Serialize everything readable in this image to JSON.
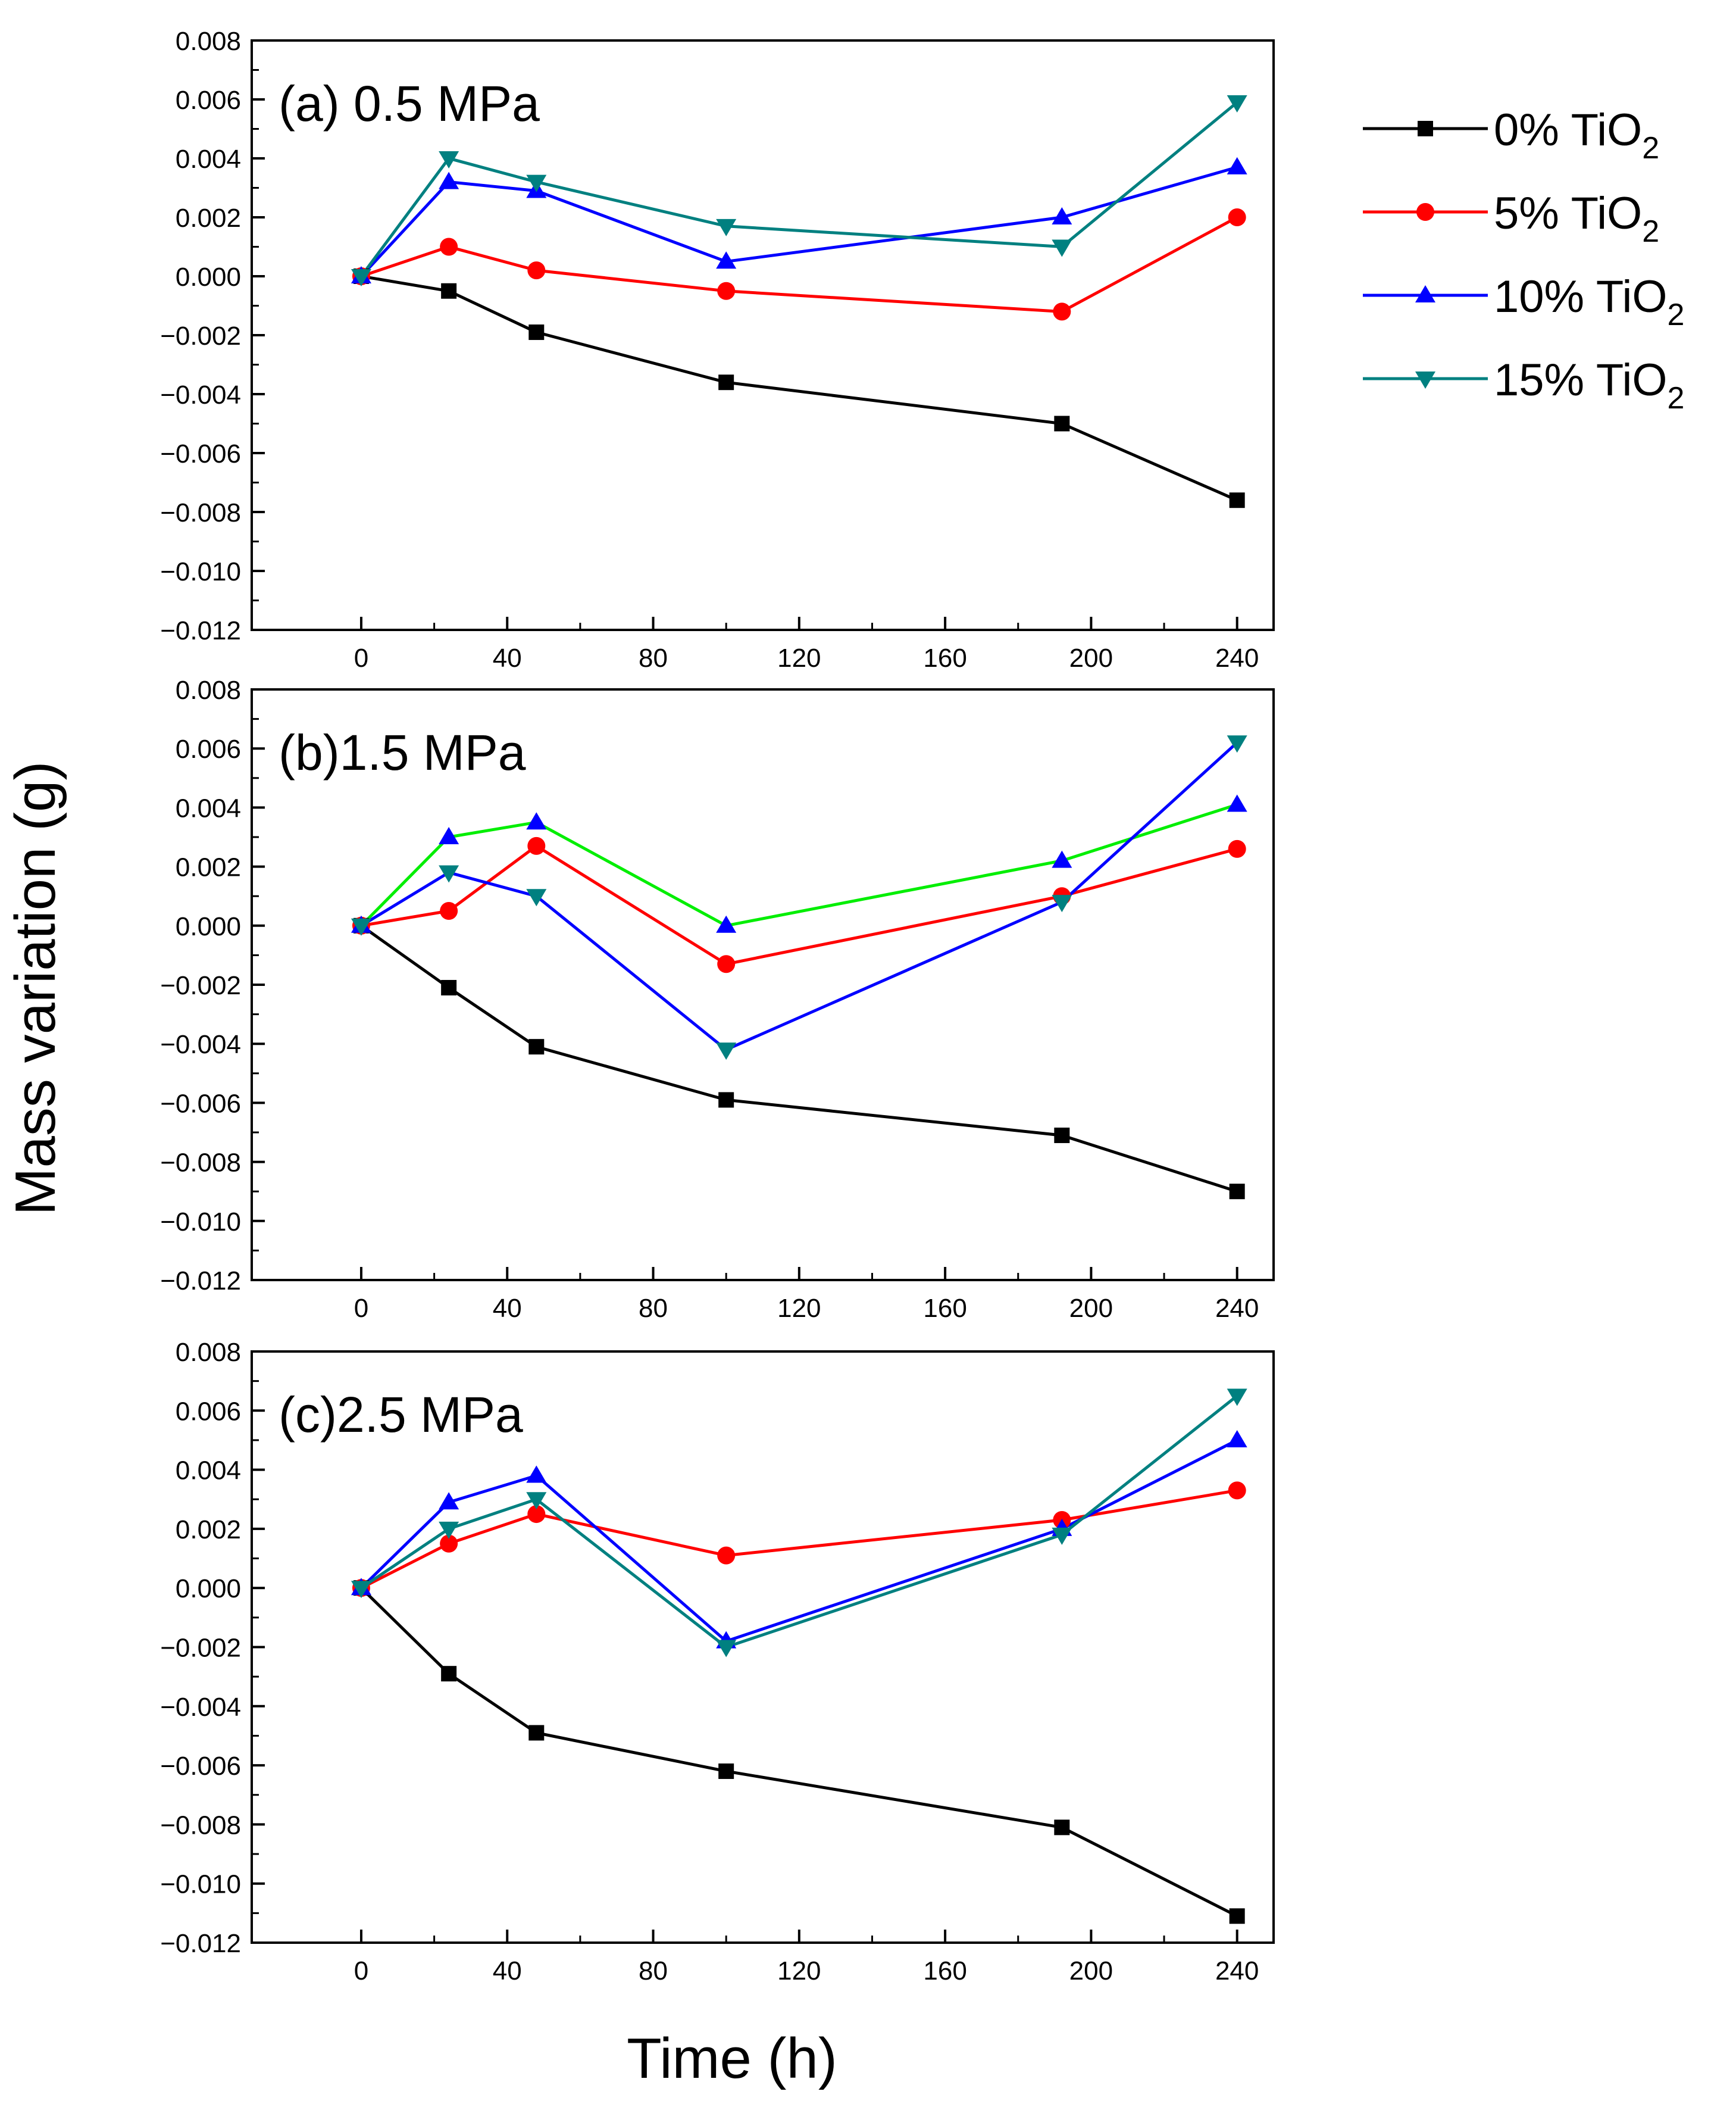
{
  "figure": {
    "ylabel": "Mass variation (g)",
    "xlabel": "Time (h)"
  },
  "legend": {
    "placement": "top-right",
    "entries": [
      {
        "prefix": "0% TiO",
        "sub": "2",
        "color": "#000000",
        "marker": "square"
      },
      {
        "prefix": "5% TiO",
        "sub": "2",
        "color": "#ff0000",
        "marker": "circle"
      },
      {
        "prefix": "10% TiO",
        "sub": "2",
        "color": "#0000ff",
        "marker": "triangle-up"
      },
      {
        "prefix": "15% TiO",
        "sub": "2",
        "color": "#008080",
        "marker": "triangle-down"
      }
    ]
  },
  "chart_data": [
    {
      "type": "line",
      "title": "(a) 0.5 MPa",
      "xlim": [
        -30,
        250
      ],
      "ylim": [
        -0.012,
        0.008
      ],
      "xticks": [
        0,
        40,
        80,
        120,
        160,
        200,
        240
      ],
      "yticks": [
        -0.012,
        -0.01,
        -0.008,
        -0.006,
        -0.004,
        -0.002,
        0.0,
        0.002,
        0.004,
        0.006,
        0.008
      ],
      "ytick_labels": [
        "−0.012",
        "−0.010",
        "−0.008",
        "−0.006",
        "−0.004",
        "−0.002",
        "0.000",
        "0.002",
        "0.004",
        "0.006",
        "0.008"
      ],
      "x": [
        0,
        24,
        48,
        100,
        192,
        240
      ],
      "series": [
        {
          "name": "0% TiO2",
          "color": "#000000",
          "line_color": "#000000",
          "marker": "square",
          "values": [
            0.0,
            -0.0005,
            -0.0019,
            -0.0036,
            -0.005,
            -0.0076
          ]
        },
        {
          "name": "5% TiO2",
          "color": "#ff0000",
          "line_color": "#ff0000",
          "marker": "circle",
          "values": [
            0.0,
            0.001,
            0.0002,
            -0.0005,
            -0.0012,
            0.002
          ]
        },
        {
          "name": "10% TiO2",
          "color": "#0000ff",
          "line_color": "#0000ff",
          "marker": "triangle-up",
          "values": [
            0.0,
            0.0032,
            0.0029,
            0.0005,
            0.002,
            0.0037
          ]
        },
        {
          "name": "15% TiO2",
          "color": "#008080",
          "line_color": "#008080",
          "marker": "triangle-down",
          "values": [
            0.0,
            0.004,
            0.0032,
            0.0017,
            0.001,
            0.0059
          ]
        }
      ]
    },
    {
      "type": "line",
      "title": "(b)1.5 MPa",
      "xlim": [
        -30,
        250
      ],
      "ylim": [
        -0.012,
        0.008
      ],
      "xticks": [
        0,
        40,
        80,
        120,
        160,
        200,
        240
      ],
      "yticks": [
        -0.012,
        -0.01,
        -0.008,
        -0.006,
        -0.004,
        -0.002,
        0.0,
        0.002,
        0.004,
        0.006,
        0.008
      ],
      "ytick_labels": [
        "−0.012",
        "−0.010",
        "−0.008",
        "−0.006",
        "−0.004",
        "−0.002",
        "0.000",
        "0.002",
        "0.004",
        "0.006",
        "0.008"
      ],
      "x": [
        0,
        24,
        48,
        100,
        192,
        240
      ],
      "series": [
        {
          "name": "0% TiO2",
          "color": "#000000",
          "line_color": "#000000",
          "marker": "square",
          "values": [
            0.0,
            -0.0021,
            -0.0041,
            -0.0059,
            -0.0071,
            -0.009
          ]
        },
        {
          "name": "5% TiO2",
          "color": "#ff0000",
          "line_color": "#ff0000",
          "marker": "circle",
          "values": [
            0.0,
            0.0005,
            0.0027,
            -0.0013,
            0.001,
            0.0026
          ]
        },
        {
          "name": "10% TiO2",
          "color": "#0000ff",
          "line_color": "#00ee00",
          "marker": "triangle-up",
          "values": [
            0.0,
            0.003,
            0.0035,
            0.0,
            0.0022,
            0.0041
          ]
        },
        {
          "name": "15% TiO2",
          "color": "#008080",
          "line_color": "#0000ff",
          "marker": "triangle-down",
          "values": [
            0.0,
            0.0018,
            0.001,
            -0.0042,
            0.0008,
            0.0062
          ]
        }
      ]
    },
    {
      "type": "line",
      "title": "(c)2.5 MPa",
      "xlim": [
        -30,
        250
      ],
      "ylim": [
        -0.012,
        0.008
      ],
      "xticks": [
        0,
        40,
        80,
        120,
        160,
        200,
        240
      ],
      "yticks": [
        -0.012,
        -0.01,
        -0.008,
        -0.006,
        -0.004,
        -0.002,
        0.0,
        0.002,
        0.004,
        0.006,
        0.008
      ],
      "ytick_labels": [
        "−0.012",
        "−0.010",
        "−0.008",
        "−0.006",
        "−0.004",
        "−0.002",
        "0.000",
        "0.002",
        "0.004",
        "0.006",
        "0.008"
      ],
      "x": [
        0,
        24,
        48,
        100,
        192,
        240
      ],
      "series": [
        {
          "name": "0% TiO2",
          "color": "#000000",
          "line_color": "#000000",
          "marker": "square",
          "values": [
            0.0,
            -0.0029,
            -0.0049,
            -0.0062,
            -0.0081,
            -0.0111
          ]
        },
        {
          "name": "5% TiO2",
          "color": "#ff0000",
          "line_color": "#ff0000",
          "marker": "circle",
          "values": [
            0.0,
            0.0015,
            0.0025,
            0.0011,
            0.0023,
            0.0033
          ]
        },
        {
          "name": "10% TiO2",
          "color": "#0000ff",
          "line_color": "#0000ff",
          "marker": "triangle-up",
          "values": [
            0.0,
            0.0029,
            0.0038,
            -0.0018,
            0.002,
            0.005
          ]
        },
        {
          "name": "15% TiO2",
          "color": "#008080",
          "line_color": "#008080",
          "marker": "triangle-down",
          "values": [
            0.0,
            0.002,
            0.003,
            -0.002,
            0.0018,
            0.0065
          ]
        }
      ]
    }
  ]
}
